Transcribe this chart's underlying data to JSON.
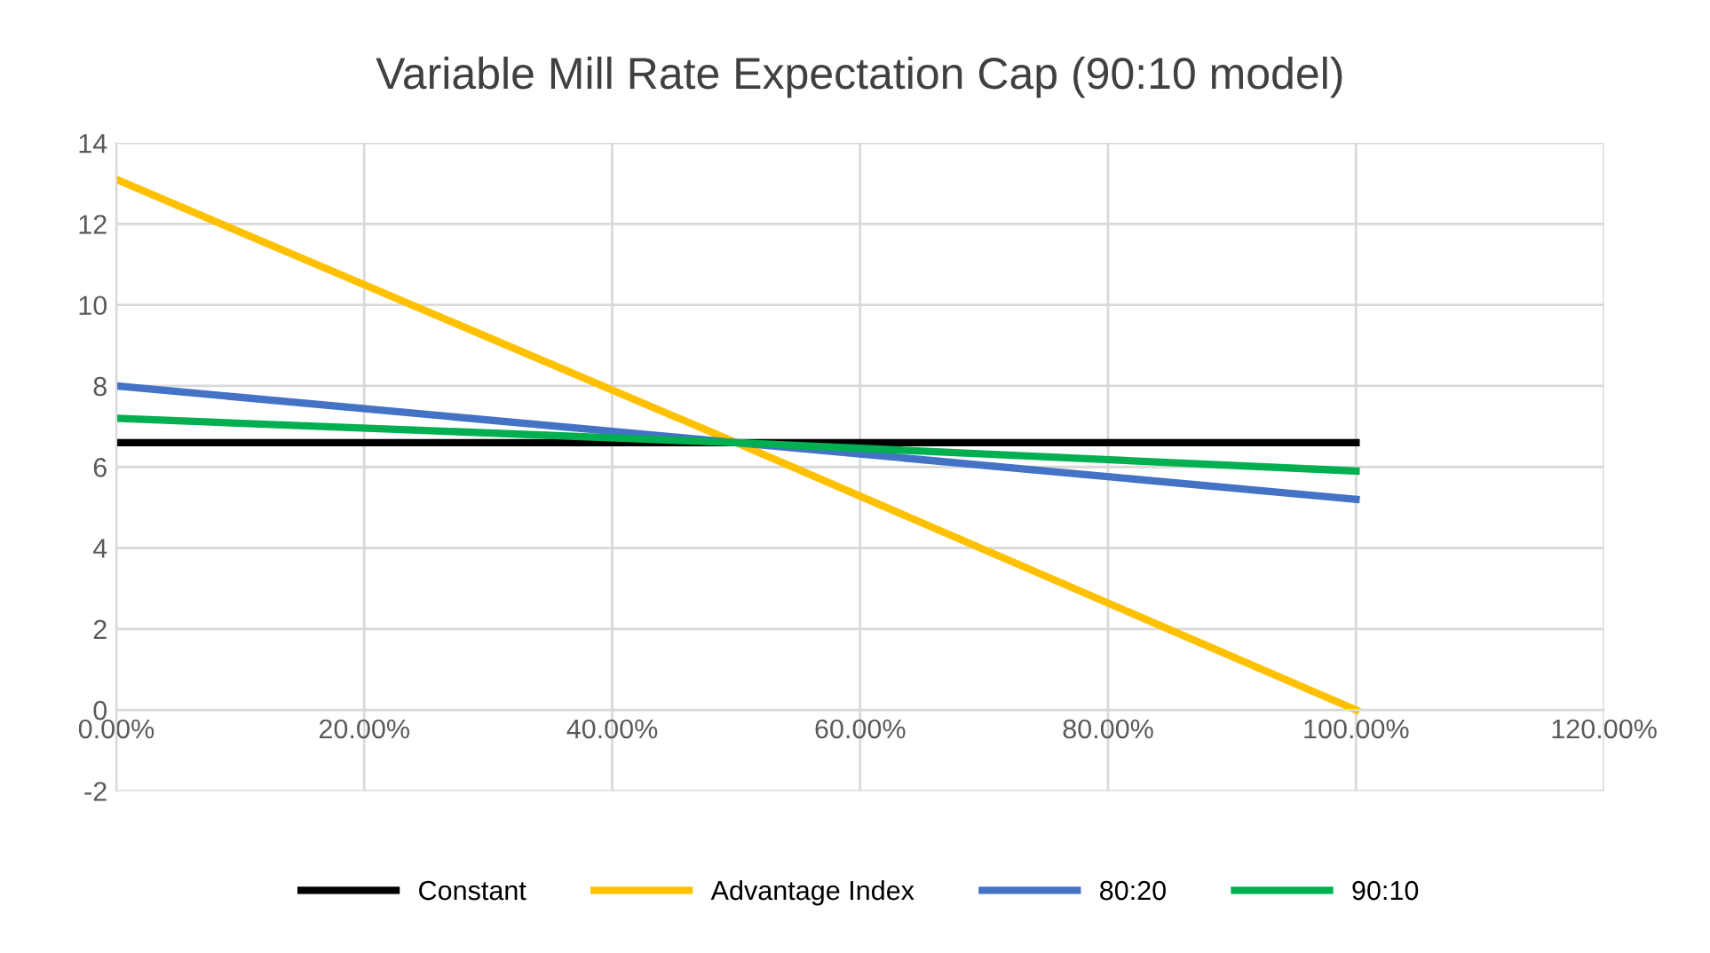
{
  "chart_data": {
    "type": "line",
    "title": "Variable Mill Rate Expectation Cap (90:10 model)",
    "x": [
      0,
      0.5,
      1
    ],
    "series": [
      {
        "name": "Constant",
        "color": "#000000",
        "values": [
          6.6,
          6.6,
          6.6
        ]
      },
      {
        "name": "Advantage Index",
        "color": "#ffc000",
        "values": [
          13.1,
          6.6,
          0
        ]
      },
      {
        "name": "80:20",
        "color": "#4472c4",
        "values": [
          8.0,
          6.6,
          5.2
        ]
      },
      {
        "name": "90:10",
        "color": "#00b050",
        "values": [
          7.2,
          6.6,
          5.9
        ]
      }
    ],
    "xlim": [
      0,
      1.2
    ],
    "xticks": [
      {
        "value": 0,
        "label": "0.00%"
      },
      {
        "value": 0.2,
        "label": "20.00%"
      },
      {
        "value": 0.4,
        "label": "40.00%"
      },
      {
        "value": 0.6,
        "label": "60.00%"
      },
      {
        "value": 0.8,
        "label": "80.00%"
      },
      {
        "value": 1.0,
        "label": "100.00%"
      },
      {
        "value": 1.2,
        "label": "120.00%"
      }
    ],
    "ylim": [
      -2,
      14
    ],
    "yticks": [
      -2,
      0,
      2,
      4,
      6,
      8,
      10,
      12,
      14
    ],
    "grid": true,
    "legend": "bottom",
    "marker": "none",
    "line_style": "solid"
  }
}
